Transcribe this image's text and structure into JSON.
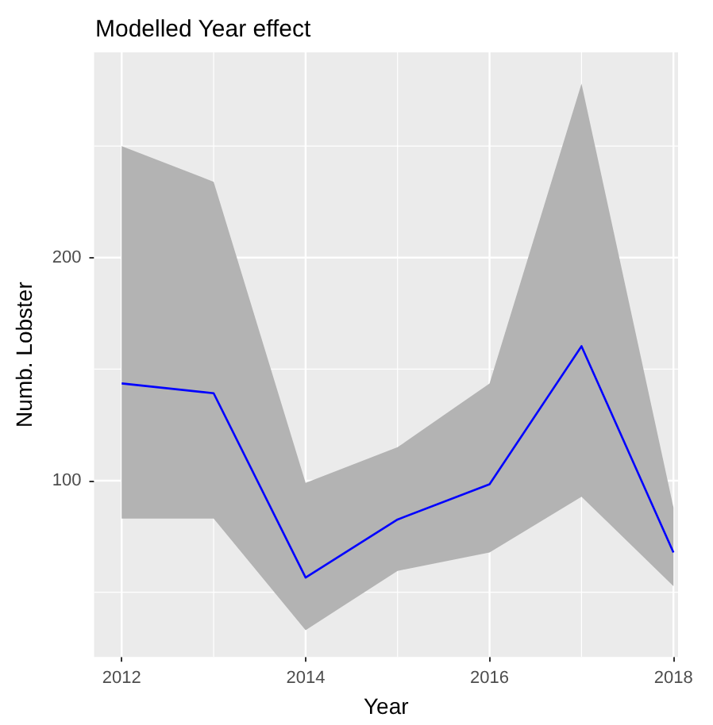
{
  "chart_data": {
    "type": "line",
    "title": "Modelled Year effect",
    "xlabel": "Year",
    "ylabel": "Numb. Lobster",
    "x": [
      2012,
      2013,
      2014,
      2015,
      2016,
      2017,
      2018
    ],
    "series": [
      {
        "color": "#0000ff",
        "values": [
          143.6,
          139.2,
          56.6,
          82.6,
          98.4,
          160.3,
          67.8
        ],
        "lower": [
          83,
          83,
          33,
          59.6,
          67.8,
          92.8,
          52.7
        ],
        "upper": [
          250,
          234,
          99,
          115,
          143.6,
          278,
          88
        ]
      }
    ],
    "xlim": [
      2011.7,
      2018.05
    ],
    "xticks": [
      2012,
      {
        "value": 2013,
        "label": null
      },
      2014,
      {
        "value": 2015,
        "label": null
      },
      2016,
      {
        "value": 2017,
        "label": null
      },
      2018
    ],
    "ylim": [
      21,
      292
    ],
    "yticks": [
      {
        "value": 50,
        "label": null
      },
      100,
      {
        "value": 150,
        "label": null
      },
      200,
      {
        "value": 250,
        "label": null
      }
    ],
    "grid": true,
    "marker": "none",
    "line_style": "solid"
  }
}
